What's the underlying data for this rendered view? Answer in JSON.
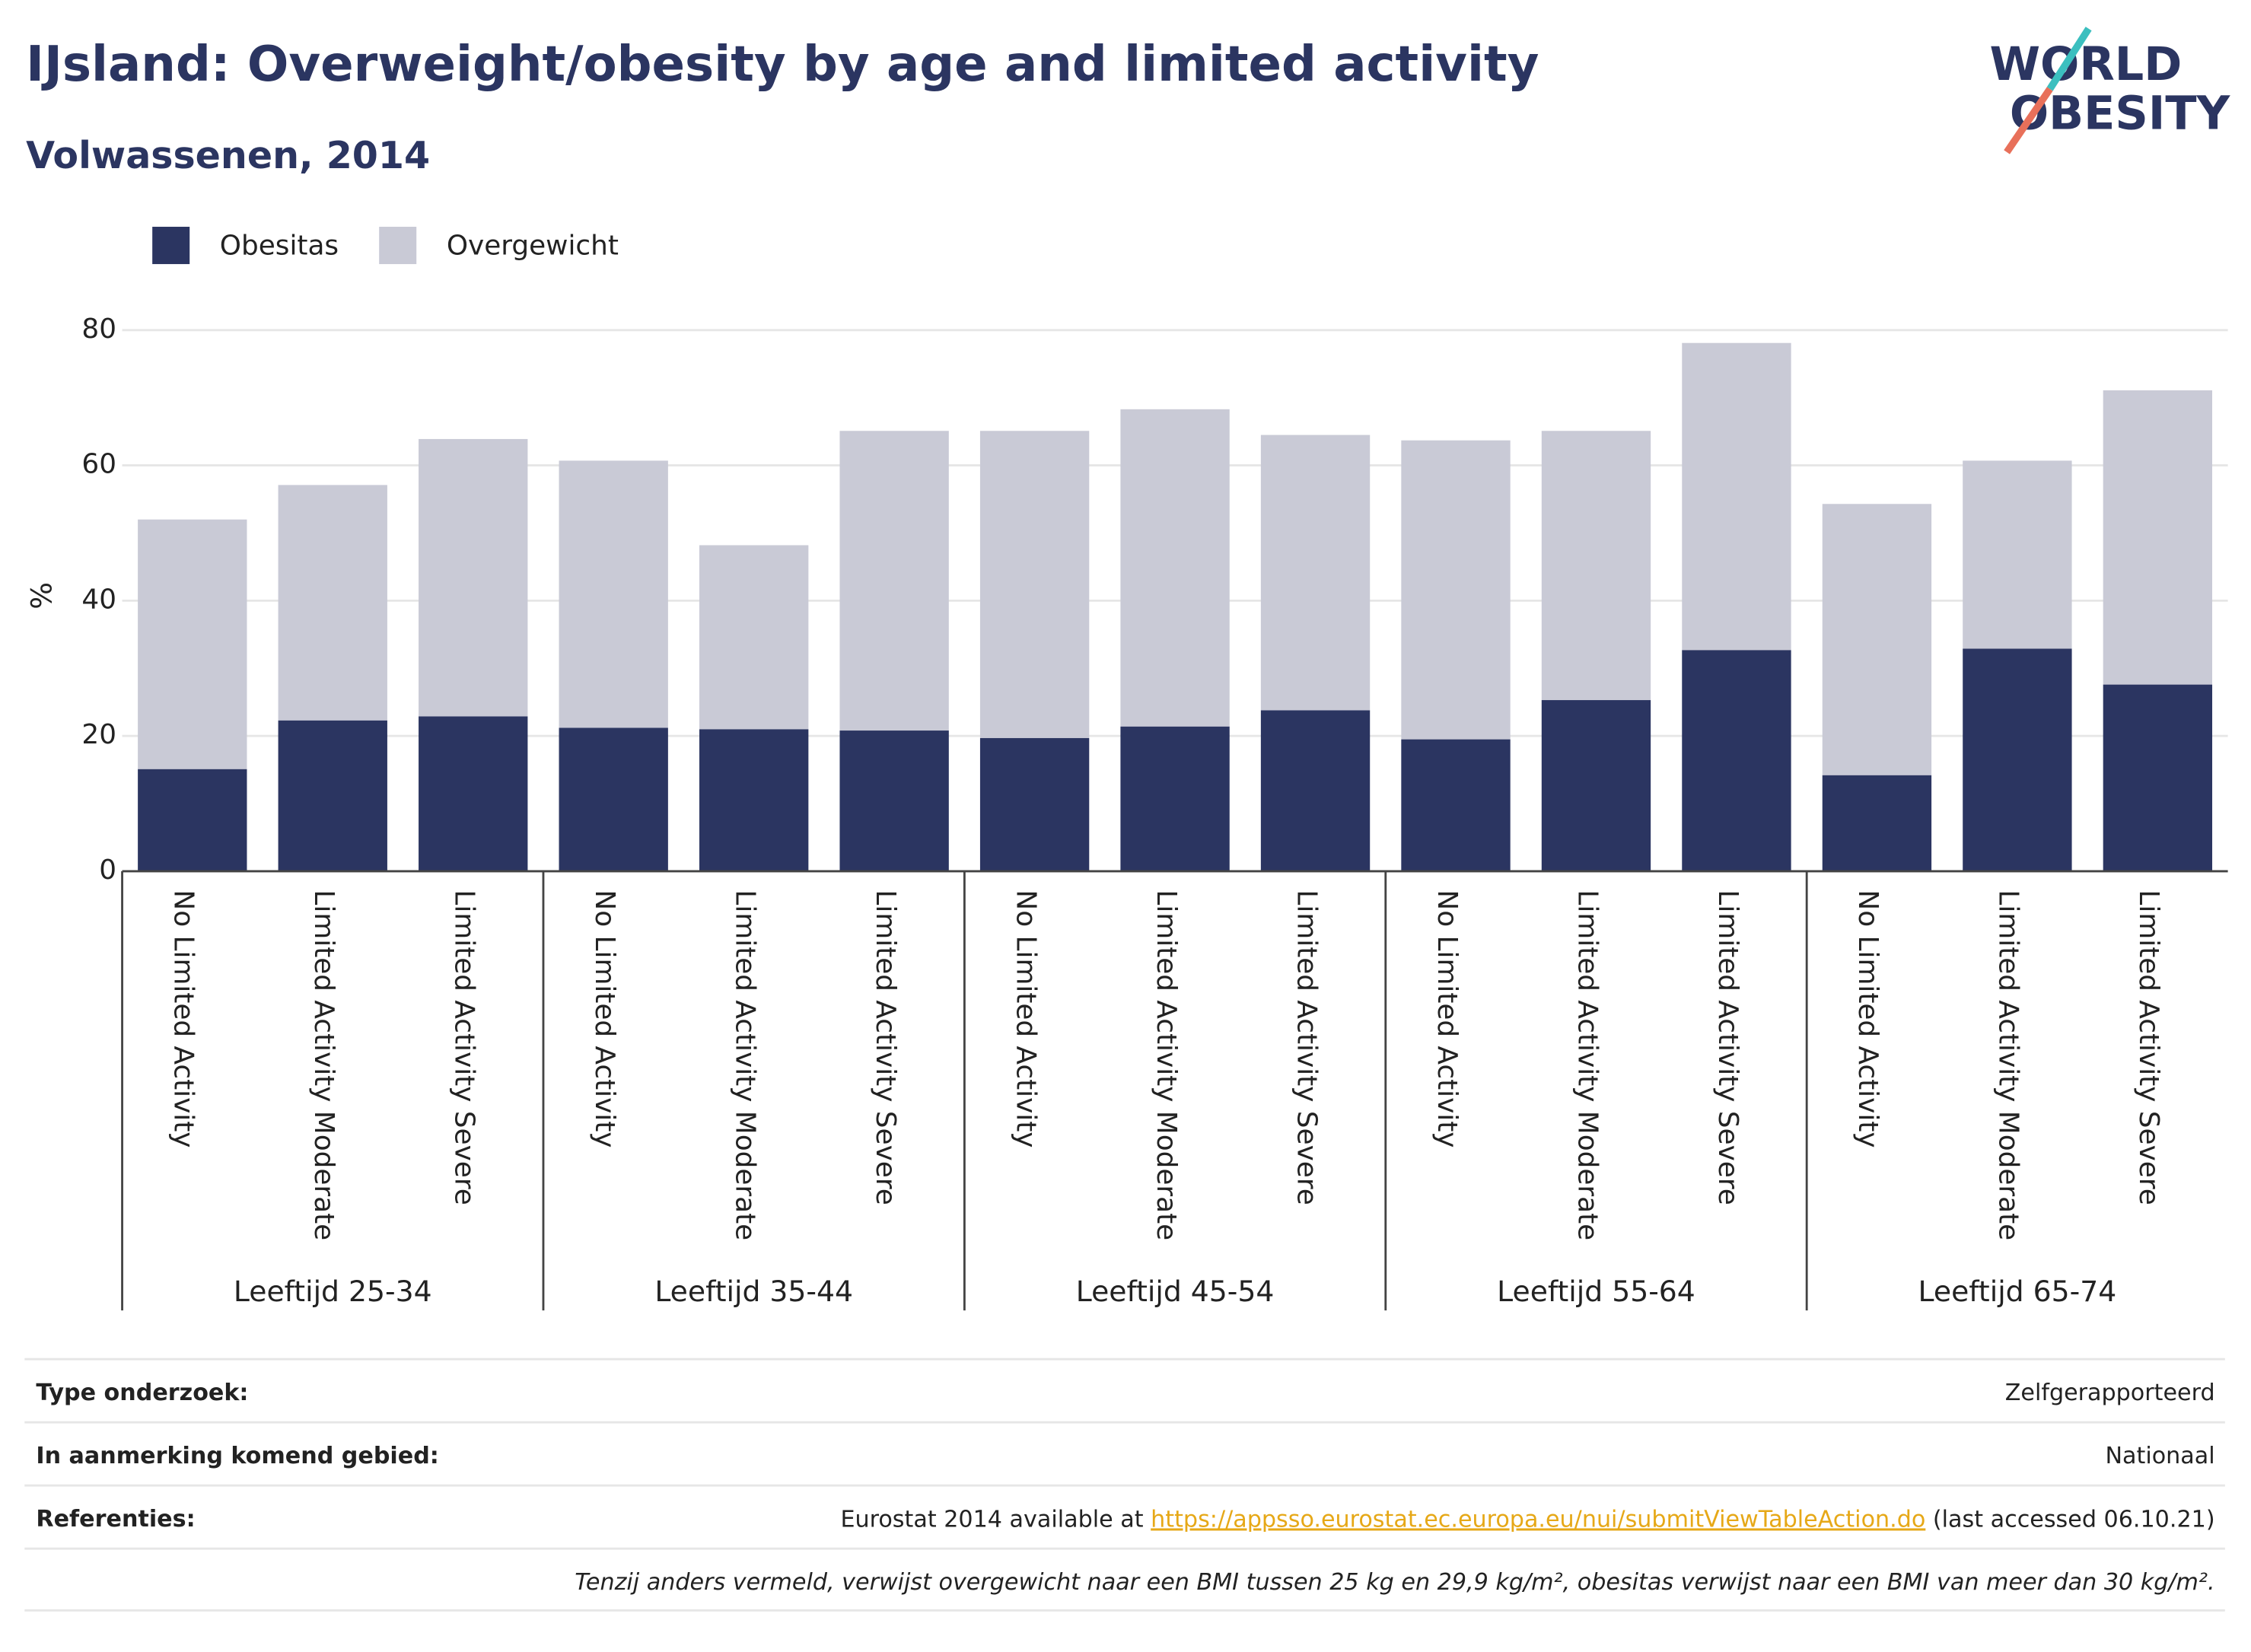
{
  "chart_data": {
    "type": "bar",
    "stacked": true,
    "title": "IJsland: Overweight/obesity by age and limited activity",
    "subtitle": "Volwassenen, 2014",
    "y_label": "%",
    "categories": [
      "No Limited Activity",
      "Limited Activity Moderate",
      "Limited Activity Severe",
      "No Limited Activity",
      "Limited Activity Moderate",
      "Limited Activity Severe",
      "No Limited Activity",
      "Limited Activity Moderate",
      "Limited Activity Severe",
      "No Limited Activity",
      "Limited Activity Moderate",
      "Limited Activity Severe",
      "No Limited Activity",
      "Limited Activity Moderate",
      "Limited Activity Severe"
    ],
    "groups": [
      "Leeftijd 25-34",
      "Leeftijd 35-44",
      "Leeftijd 45-54",
      "Leeftijd 55-64",
      "Leeftijd 65-74"
    ],
    "series": [
      {
        "name": "Obesitas",
        "color": "#2b3561",
        "values": [
          15.1,
          22.3,
          22.9,
          21.2,
          21.0,
          20.8,
          19.7,
          21.4,
          23.8,
          19.5,
          25.3,
          32.7,
          14.2,
          32.9,
          27.6
        ]
      },
      {
        "name": "Overgewicht",
        "color": "#c9cad6",
        "values": [
          36.9,
          34.8,
          41.0,
          39.5,
          27.2,
          44.3,
          45.4,
          46.9,
          40.7,
          44.2,
          39.8,
          45.4,
          40.1,
          27.8,
          43.5
        ]
      }
    ],
    "ylim": [
      0,
      80
    ],
    "yticks": [
      0,
      20,
      40,
      60,
      80
    ],
    "grid": true,
    "legend": "top-left"
  },
  "logo": [
    "WORLD",
    "OBESITY"
  ],
  "footer": {
    "rows": [
      {
        "label": "Type onderzoek:",
        "value": "Zelfgerapporteerd"
      },
      {
        "label": "In aanmerking komend gebied:",
        "value": "Nationaal"
      },
      {
        "label": "Referenties:",
        "value_prefix": "Eurostat 2014 available at",
        "link": "https://appsso.eurostat.ec.europa.eu/nui/submitViewTableAction.do",
        "value_suffix": "(last accessed 06.10.21)"
      }
    ],
    "note": "Tenzij anders vermeld, verwijst overgewicht naar een BMI tussen 25 kg en 29,9 kg/m², obesitas verwijst naar een BMI van meer dan 30 kg/m²."
  }
}
